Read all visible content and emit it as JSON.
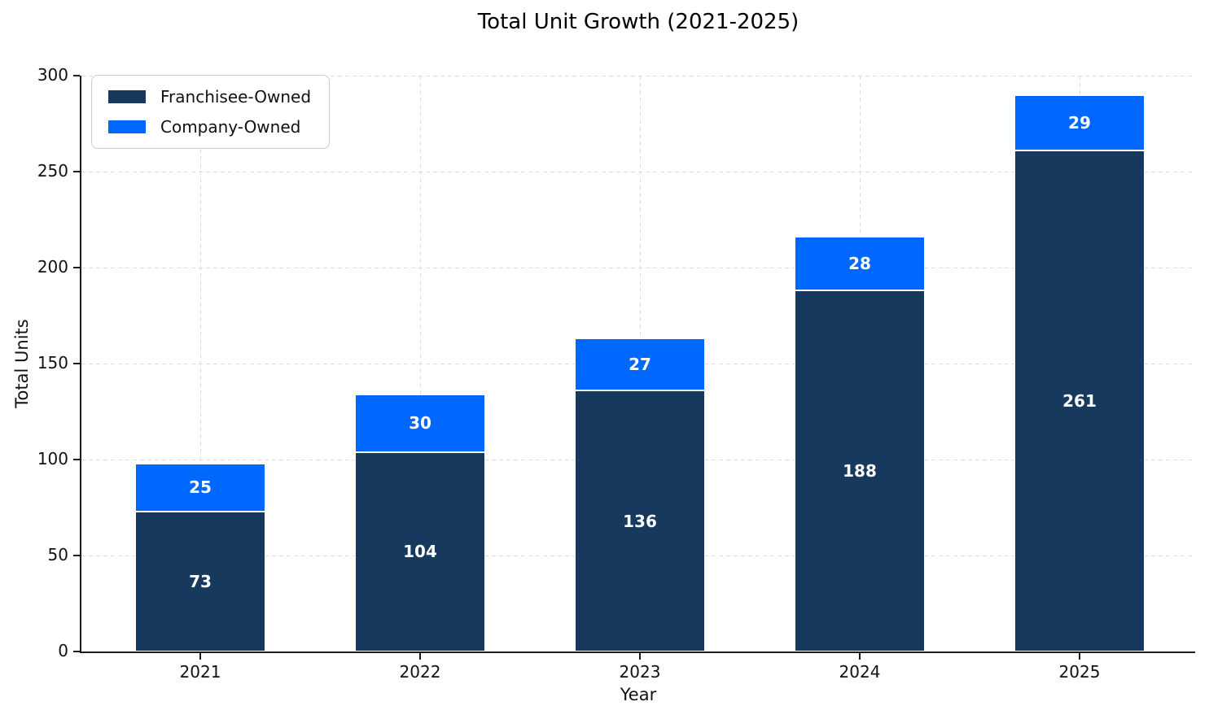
{
  "title": "Total Unit Growth (2021-2025)",
  "chart_data": {
    "type": "bar",
    "stacked": true,
    "title": "Total Unit Growth (2021-2025)",
    "xlabel": "Year",
    "ylabel": "Total Units",
    "categories": [
      "2021",
      "2022",
      "2023",
      "2024",
      "2025"
    ],
    "series": [
      {
        "name": "Franchisee-Owned",
        "color": "#17395e",
        "values": [
          73,
          104,
          136,
          188,
          261
        ]
      },
      {
        "name": "Company-Owned",
        "color": "#0068ff",
        "values": [
          25,
          30,
          27,
          28,
          29
        ]
      }
    ],
    "ylim": [
      0,
      300
    ],
    "yticks": [
      0,
      50,
      100,
      150,
      200,
      250,
      300
    ],
    "grid": "dashed",
    "grid_color": "#dcdcdc",
    "legend_position": "upper-left",
    "bar_value_label_color": "#ffffff"
  }
}
